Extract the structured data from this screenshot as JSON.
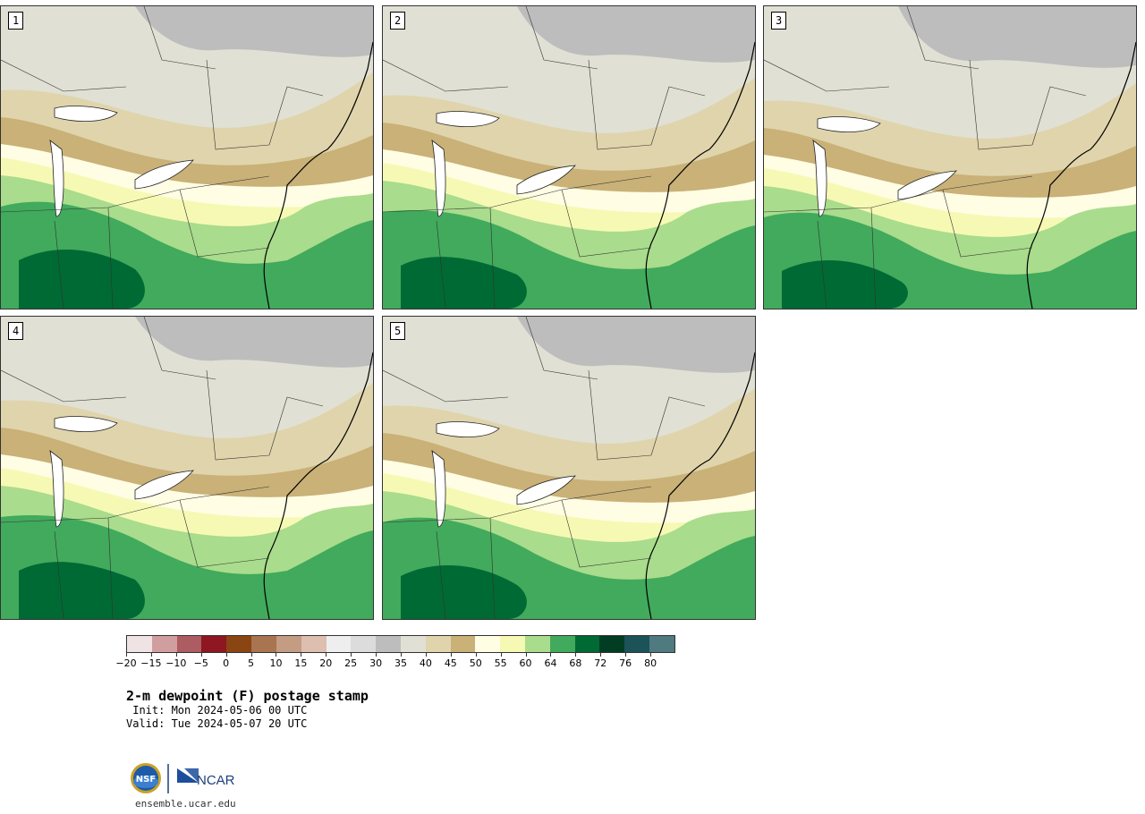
{
  "panels": [
    {
      "label": "1"
    },
    {
      "label": "2"
    },
    {
      "label": "3"
    },
    {
      "label": "4"
    },
    {
      "label": "5"
    }
  ],
  "colorbar": {
    "colors": [
      "#efe3e3",
      "#d19ea0",
      "#ad5c62",
      "#8e1721",
      "#8a4512",
      "#a97450",
      "#c49c84",
      "#ddbfb0",
      "#eeeeee",
      "#dcdcdc",
      "#bdbdbd",
      "#e0e0d4",
      "#e0d4ac",
      "#c9b177",
      "#fffde4",
      "#f6f9b4",
      "#a9dc8c",
      "#41aa5c",
      "#006a34",
      "#003d22",
      "#1b5359",
      "#4f7a80"
    ],
    "tick_labels": [
      "−20",
      "−15",
      "−10",
      "−5",
      "0",
      "5",
      "10",
      "15",
      "20",
      "25",
      "30",
      "35",
      "40",
      "45",
      "50",
      "55",
      "60",
      "64",
      "68",
      "72",
      "76",
      "80"
    ]
  },
  "map_colors": {
    "gray_dark": "#bdbdbd",
    "gray_light": "#e0e0d4",
    "tan": "#e0d4ac",
    "brown": "#c9b177",
    "cream": "#fffde4",
    "yellow": "#f6f9b4",
    "green_light": "#a9dc8c",
    "green": "#41aa5c",
    "green_dark": "#006a34"
  },
  "title": "2-m dewpoint (F) postage stamp",
  "init_text": " Init: Mon 2024-05-06 00 UTC",
  "valid_text": "Valid: Tue 2024-05-07 20 UTC",
  "logos": {
    "nsf": "NSF",
    "ncar": "NCAR"
  },
  "url": "ensemble.ucar.edu"
}
